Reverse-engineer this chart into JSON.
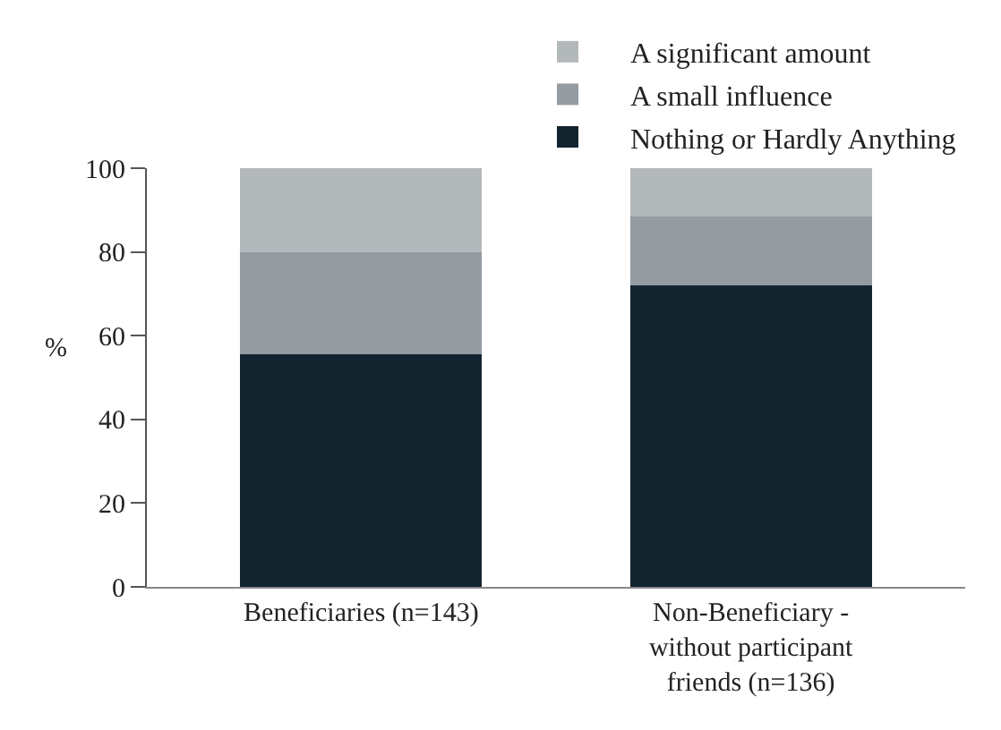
{
  "chart_data": {
    "type": "bar",
    "stacked": true,
    "ylabel": "%",
    "categories": [
      "Beneficiaries (n=143)",
      "Non-Beneficiary - without participant friends (n=136)"
    ],
    "series": [
      {
        "name": "Nothing or Hardly Anything",
        "color": "#13242f",
        "values": [
          55.5,
          72
        ]
      },
      {
        "name": "A small influence",
        "color": "#949ba1",
        "values": [
          24.5,
          16.5
        ]
      },
      {
        "name": "A significant amount",
        "color": "#b3b8bb",
        "values": [
          20,
          11.5
        ]
      }
    ],
    "ylim": [
      0,
      100
    ],
    "yticks": [
      0,
      20,
      40,
      60,
      80,
      100
    ],
    "legend": "top right"
  }
}
